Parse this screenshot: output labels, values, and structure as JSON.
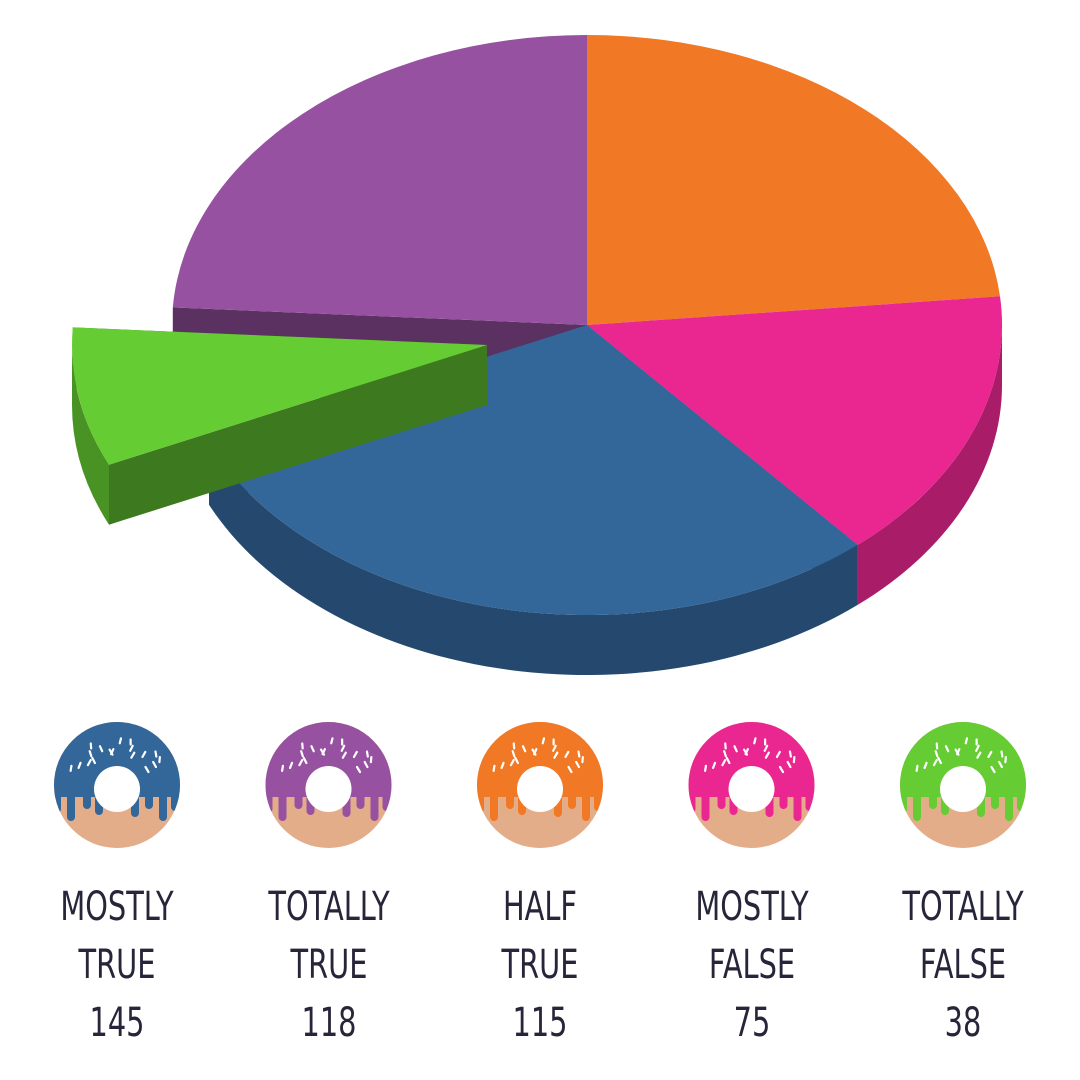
{
  "chart_data": {
    "type": "pie3d",
    "categories": [
      "MOSTLY TRUE",
      "TOTALLY TRUE",
      "HALF TRUE",
      "MOSTLY FALSE",
      "TOTALLY FALSE"
    ],
    "values": [
      145,
      118,
      115,
      75,
      38
    ],
    "colors": [
      "#336699",
      "#9751a1",
      "#f17824",
      "#ea2790",
      "#66cc33"
    ]
  }
}
